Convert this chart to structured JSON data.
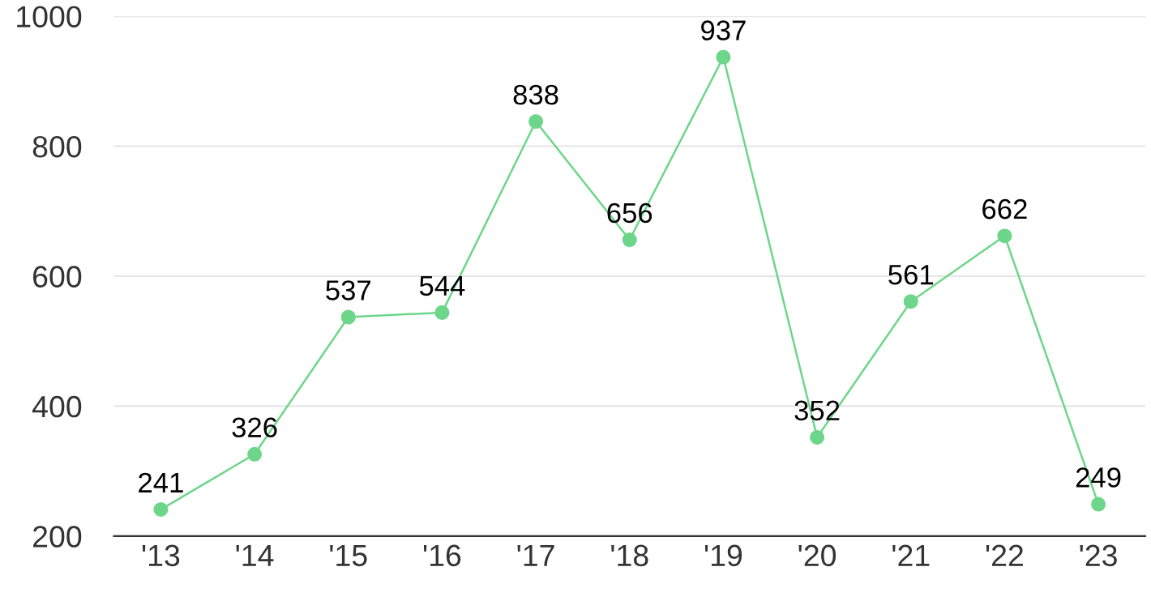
{
  "chart_data": {
    "type": "line",
    "categories": [
      "'13",
      "'14",
      "'15",
      "'16",
      "'17",
      "'18",
      "'19",
      "'20",
      "'21",
      "'22",
      "'23"
    ],
    "series": [
      {
        "color": "#6dd68a",
        "values": [
          241,
          326,
          537,
          544,
          838,
          656,
          937,
          352,
          561,
          662,
          249
        ]
      }
    ],
    "ylim": [
      200,
      1000
    ],
    "yticks": [
      200,
      400,
      600,
      800,
      1000
    ],
    "grid": "y",
    "marker": "circle",
    "line_style": "solid",
    "data_labels": true
  }
}
